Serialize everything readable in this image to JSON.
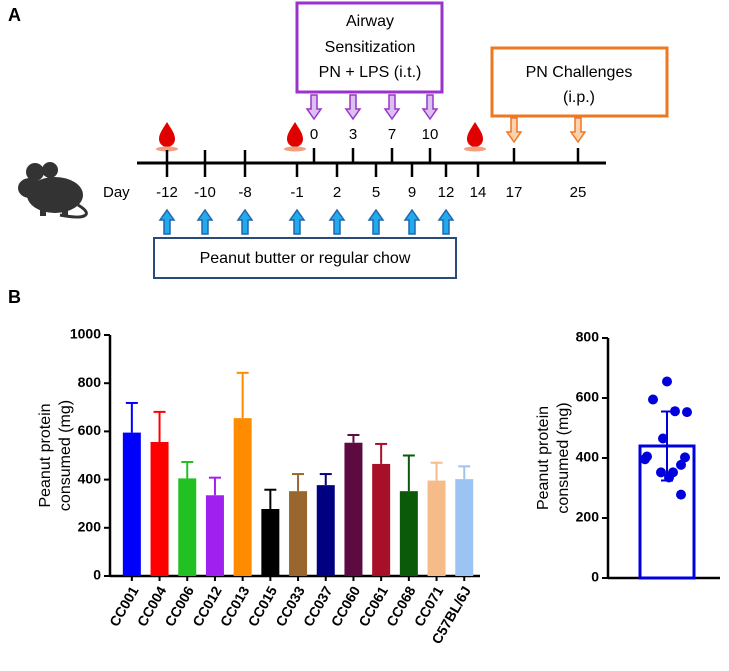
{
  "panels": [
    "A",
    "B"
  ],
  "timeline": {
    "day_label": "Day",
    "top_days": [
      "0",
      "3",
      "7",
      "10"
    ],
    "bottom_days": [
      "-12",
      "-10",
      "-8",
      "-1",
      "2",
      "5",
      "9",
      "12",
      "14",
      "17",
      "25"
    ],
    "sensitization": [
      "Airway",
      "Sensitization",
      "PN + LPS (i.t.)"
    ],
    "challenges": [
      "PN Challenges",
      "(i.p.)"
    ],
    "diet": "Peanut butter or regular chow"
  },
  "chart_data": [
    {
      "type": "bar",
      "ylabel": [
        "Peanut protein",
        "consumed (mg)"
      ],
      "categories": [
        "CC001",
        "CC004",
        "CC006",
        "CC012",
        "CC013",
        "CC015",
        "CC033",
        "CC037",
        "CC060",
        "CC061",
        "CC068",
        "CC071",
        "C57BL/6J"
      ],
      "values": [
        595,
        556,
        405,
        335,
        655,
        278,
        352,
        377,
        553,
        465,
        352,
        396,
        402
      ],
      "errors": [
        123,
        125,
        68,
        73,
        188,
        80,
        71,
        46,
        32,
        83,
        148,
        74,
        53
      ],
      "colors": [
        "#0000ff",
        "#ff0000",
        "#22c022",
        "#a020f0",
        "#ff8c00",
        "#000000",
        "#99662e",
        "#000080",
        "#5c0a40",
        "#a8102a",
        "#0a5a0a",
        "#f5bb88",
        "#9cc4f2"
      ],
      "ylim": [
        0,
        1000
      ],
      "yticks": [
        0,
        200,
        400,
        600,
        800,
        1000
      ]
    },
    {
      "type": "bar",
      "ylabel": [
        "Peanut protein",
        "consumed (mg)"
      ],
      "categories": [
        null
      ],
      "values": [
        440
      ],
      "errors": [
        115
      ],
      "points": [
        595,
        556,
        405,
        335,
        655,
        278,
        352,
        377,
        553,
        465,
        352,
        396,
        402
      ],
      "color": "#0000dd",
      "ylim": [
        0,
        800
      ],
      "yticks": [
        0,
        200,
        400,
        600,
        800
      ]
    }
  ]
}
